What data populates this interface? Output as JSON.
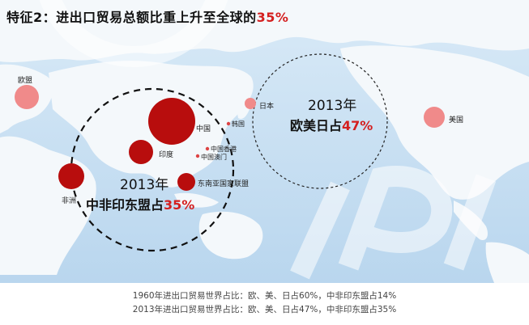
{
  "title": {
    "main": "特征2：进出口贸易总额比重上升至全球的",
    "pct": "35%"
  },
  "regions": {
    "europe": "欧盟",
    "japan": "日本",
    "usa": "美国",
    "china": "中国",
    "korea": "韩国",
    "hongkong": "中国香港",
    "macau": "中国澳门",
    "india": "印度",
    "asean": "东南亚国家联盟",
    "africa": "非洲"
  },
  "west_circle": {
    "year": "2013年",
    "text": "欧美日占",
    "pct": "47%"
  },
  "east_circle": {
    "year": "2013年",
    "text": "中非印东盟占",
    "pct": "35%"
  },
  "footer": {
    "line1": "1960年进出口贸易世界占比：欧、美、日占60%，中非印东盟占14%",
    "line2": "2013年进出口贸易世界占比：欧、美、日占47%，中非印东盟占35%"
  },
  "colors": {
    "ocean": "#cfe3f3",
    "land": "#f7fafc",
    "dark_red": "#b80d0d",
    "light_red": "#f08a8a",
    "accent": "#d41f1f"
  }
}
